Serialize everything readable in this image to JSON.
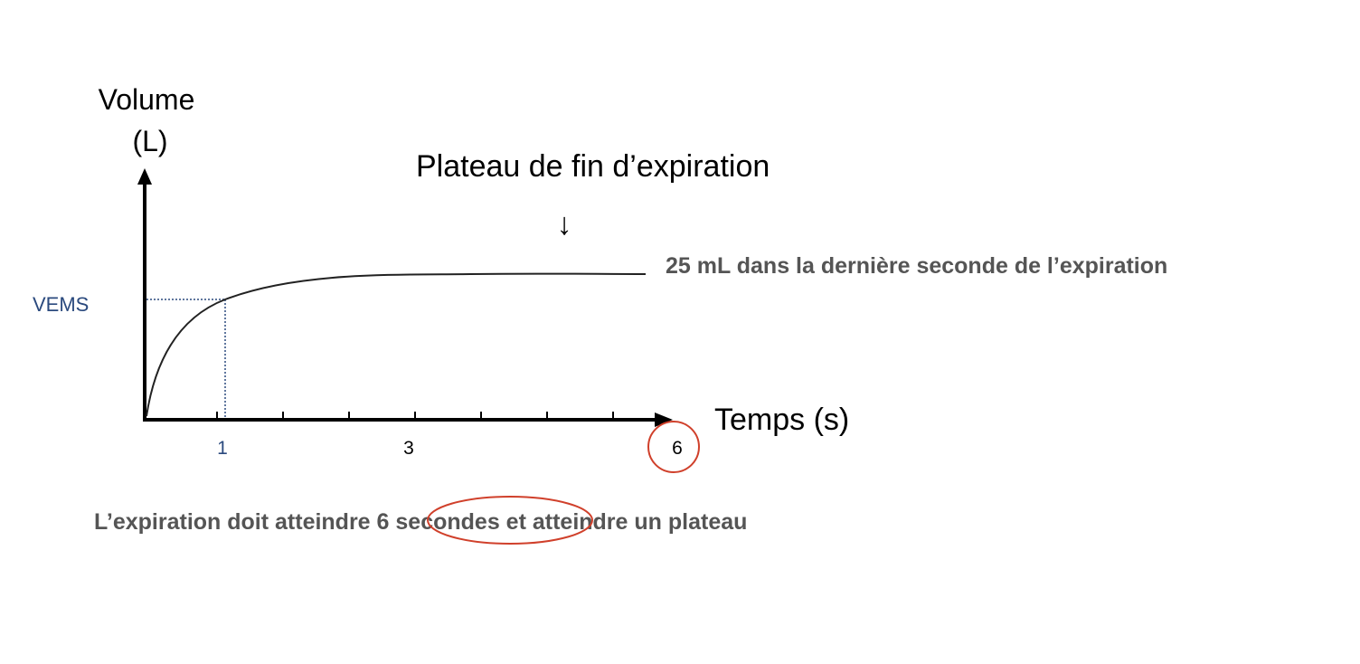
{
  "axes": {
    "y_title_line1": "Volume",
    "y_title_line2": "(L)",
    "x_title": "Temps (s)"
  },
  "ticks": {
    "t1": "1",
    "t3": "3",
    "t6": "6"
  },
  "labels": {
    "vems": "VEMS",
    "plateau": "Plateau de fin d’expiration",
    "plateau_arrow": "↓",
    "last_second": "25 mL dans la dernière seconde de l’expiration",
    "caption_before": "L’expiration doit atteindre ",
    "caption_highlight": "6 secondes",
    "caption_after": " et atteindre un plateau"
  },
  "colors": {
    "curve": "#222222",
    "axis": "#000000",
    "vems_guide": "#2b4a7e",
    "highlight_circle": "#d0402b",
    "gray_text": "#555555"
  }
}
